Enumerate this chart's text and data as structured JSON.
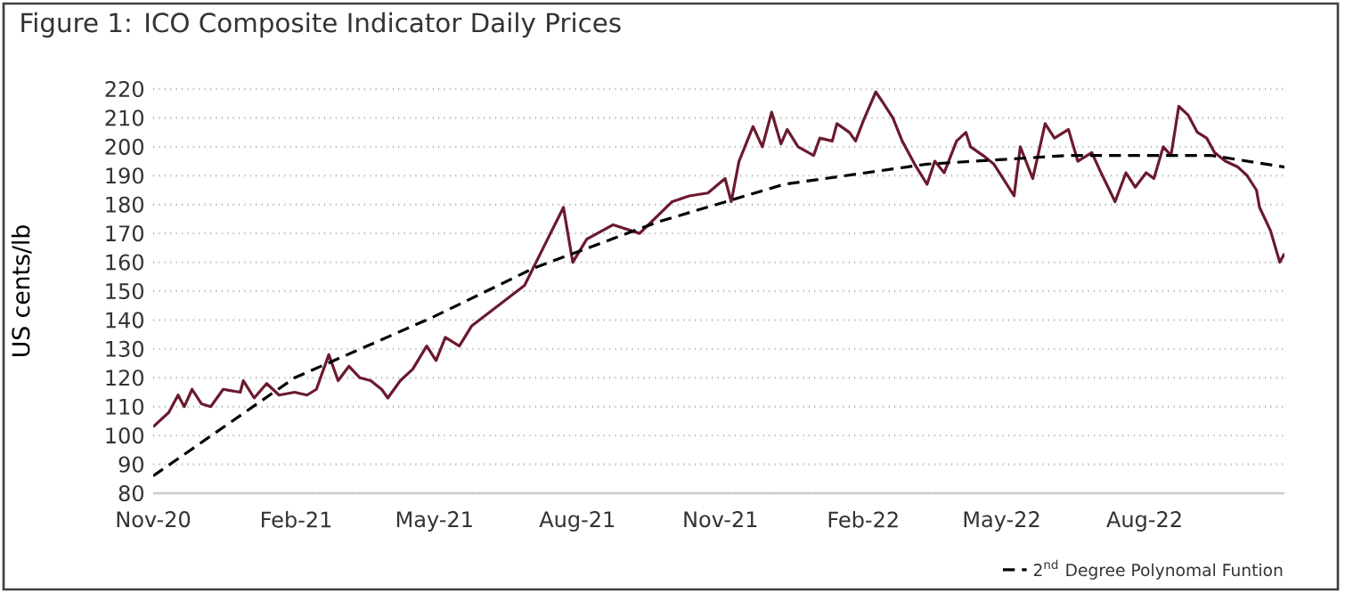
{
  "chart_data": {
    "type": "line",
    "title": "Figure 1: ICO Composite Indicator Daily Prices",
    "ylabel": "US cents/lb",
    "xlim": [
      "2020-11-01",
      "2022-10-30"
    ],
    "ylim": [
      80,
      220
    ],
    "yticks": [
      80,
      90,
      100,
      110,
      120,
      130,
      140,
      150,
      160,
      170,
      180,
      190,
      200,
      210,
      220
    ],
    "xticks": [
      {
        "value": "2020-11-01",
        "label": "Nov-20"
      },
      {
        "value": "2021-02-01",
        "label": "Feb-21"
      },
      {
        "value": "2021-05-01",
        "label": "May-21"
      },
      {
        "value": "2021-08-01",
        "label": "Aug-21"
      },
      {
        "value": "2021-11-01",
        "label": "Nov-21"
      },
      {
        "value": "2022-02-01",
        "label": "Feb-22"
      },
      {
        "value": "2022-05-01",
        "label": "May-22"
      },
      {
        "value": "2022-08-01",
        "label": "Aug-22"
      }
    ],
    "grid": "y",
    "legend": "bottom right",
    "marker": "none",
    "series": [
      {
        "color": "#6b1a2e",
        "line_style": "solid",
        "x": [
          "2020-11-01",
          "2020-11-05",
          "2020-11-11",
          "2020-11-17",
          "2020-11-21",
          "2020-11-26",
          "2020-12-02",
          "2020-12-08",
          "2020-12-16",
          "2020-12-27",
          "2020-12-29",
          "2021-01-05",
          "2021-01-13",
          "2021-01-21",
          "2021-01-31",
          "2021-02-08",
          "2021-02-14",
          "2021-02-22",
          "2021-02-28",
          "2021-03-07",
          "2021-03-14",
          "2021-03-21",
          "2021-03-28",
          "2021-04-01",
          "2021-04-09",
          "2021-04-17",
          "2021-04-26",
          "2021-05-02",
          "2021-05-08",
          "2021-05-17",
          "2021-05-25",
          "2021-06-11",
          "2021-06-28",
          "2021-07-10",
          "2021-07-23",
          "2021-07-29",
          "2021-08-07",
          "2021-08-24",
          "2021-09-10",
          "2021-10-01",
          "2021-10-12",
          "2021-10-24",
          "2021-11-04",
          "2021-11-08",
          "2021-11-13",
          "2021-11-22",
          "2021-11-28",
          "2021-12-04",
          "2021-12-10",
          "2021-12-14",
          "2021-12-21",
          "2021-12-31",
          "2022-01-04",
          "2022-01-12",
          "2022-01-15",
          "2022-01-23",
          "2022-01-27",
          "2022-02-01",
          "2022-02-09",
          "2022-02-14",
          "2022-02-20",
          "2022-02-26",
          "2022-03-06",
          "2022-03-14",
          "2022-03-19",
          "2022-03-25",
          "2022-04-02",
          "2022-04-08",
          "2022-04-11",
          "2022-04-19",
          "2022-04-26",
          "2022-05-02",
          "2022-05-09",
          "2022-05-13",
          "2022-05-21",
          "2022-05-29",
          "2022-06-04",
          "2022-06-13",
          "2022-06-19",
          "2022-06-28",
          "2022-07-04",
          "2022-07-13",
          "2022-07-20",
          "2022-07-26",
          "2022-08-02",
          "2022-08-07",
          "2022-08-13",
          "2022-08-18",
          "2022-08-23",
          "2022-08-29",
          "2022-09-04",
          "2022-09-10",
          "2022-09-15",
          "2022-09-22",
          "2022-09-30",
          "2022-10-06",
          "2022-10-12",
          "2022-10-14",
          "2022-10-21",
          "2022-10-27",
          "2022-10-30"
        ],
        "values": [
          103,
          105,
          108,
          114,
          110,
          116,
          111,
          110,
          116,
          115,
          119,
          113,
          118,
          114,
          115,
          114,
          116,
          128,
          119,
          124,
          120,
          119,
          116,
          113,
          119,
          123,
          131,
          126,
          134,
          131,
          138,
          145,
          152,
          165,
          179,
          160,
          168,
          173,
          170,
          181,
          183,
          184,
          189,
          181,
          195,
          207,
          200,
          212,
          201,
          206,
          200,
          197,
          203,
          202,
          208,
          205,
          202,
          209,
          219,
          215,
          210,
          202,
          194,
          187,
          195,
          191,
          202,
          205,
          200,
          197,
          194,
          189,
          183,
          200,
          189,
          208,
          203,
          206,
          195,
          198,
          191,
          181,
          191,
          186,
          191,
          189,
          200,
          197,
          214,
          211,
          205,
          203,
          198,
          195,
          193,
          190,
          185,
          179,
          171,
          160,
          163
        ]
      },
      {
        "name": "2$^{nd}$ Degree Polynomal Funtion",
        "color": "#000000",
        "line_style": "dashed",
        "x": [
          "2020-11-01",
          "2021-01-31",
          "2021-04-30",
          "2021-07-04",
          "2021-09-22",
          "2021-12-12",
          "2022-03-14",
          "2022-06-13",
          "2022-09-13",
          "2022-10-30"
        ],
        "values": [
          86,
          120,
          141,
          158,
          174,
          187,
          194,
          197,
          197,
          193
        ]
      }
    ]
  }
}
